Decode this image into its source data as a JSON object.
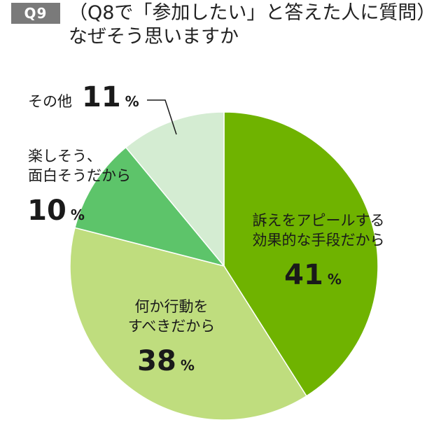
{
  "header": {
    "badge": "Q9",
    "title_line1": "（Q8で「参加したい」と答えた人に質問）",
    "title_line2": "なぜそう思いますか"
  },
  "chart_data": {
    "type": "pie",
    "title": "",
    "start_angle_deg": 0,
    "direction": "clockwise",
    "slices": [
      {
        "label_lines": [
          "訴えをアピールする",
          "効果的な手段だから"
        ],
        "value": 41,
        "percent_text": "41",
        "unit": "%",
        "color": "#6fb300"
      },
      {
        "label_lines": [
          "何か行動を",
          "すべきだから"
        ],
        "value": 38,
        "percent_text": "38",
        "unit": "%",
        "color": "#bfdd7e"
      },
      {
        "label_lines": [
          "楽しそう、",
          "面白そうだから"
        ],
        "value": 10,
        "percent_text": "10",
        "unit": "%",
        "color": "#5dc46a"
      },
      {
        "label_lines": [
          "その他"
        ],
        "value": 11,
        "percent_text": "11",
        "unit": "%",
        "color": "#d4ecd2"
      }
    ]
  }
}
